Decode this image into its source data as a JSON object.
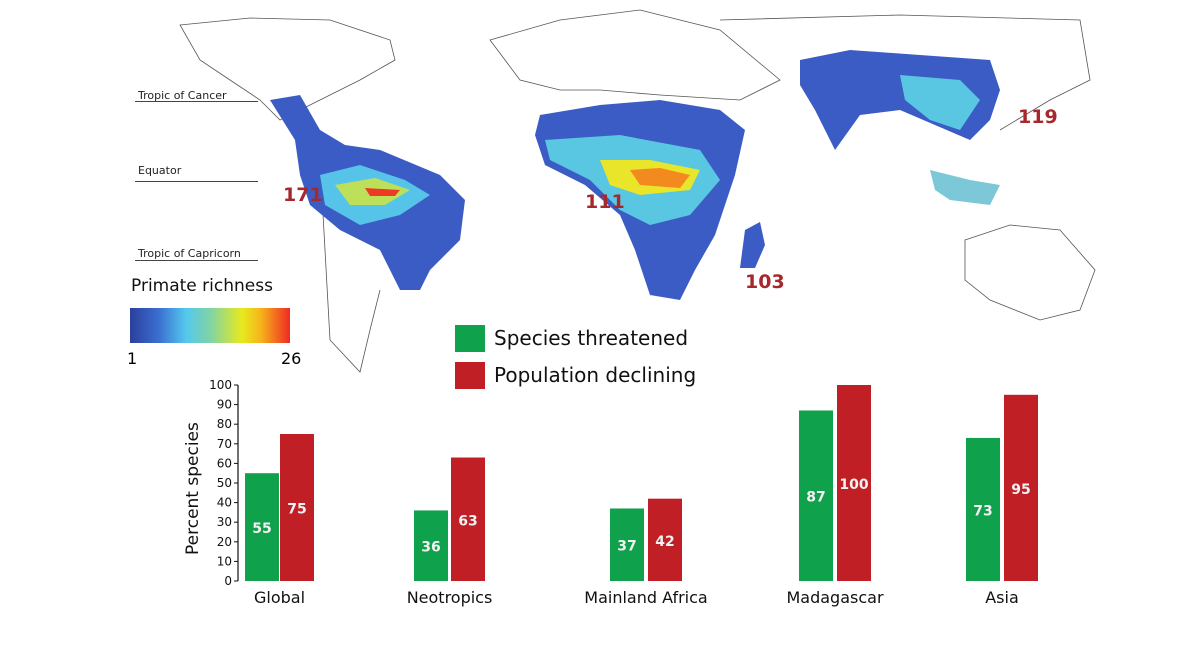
{
  "map": {
    "tropic_labels": [
      "Tropic of Cancer",
      "Equator",
      "Tropic of Capricorn"
    ],
    "richness_legend": {
      "title": "Primate richness",
      "min_label": "1",
      "max_label": "26"
    },
    "region_counts": [
      {
        "region": "Neotropics",
        "value": "171"
      },
      {
        "region": "Mainland Africa",
        "value": "111"
      },
      {
        "region": "Madagascar",
        "value": "103"
      },
      {
        "region": "Asia",
        "value": "119"
      }
    ]
  },
  "chart_data": {
    "type": "bar",
    "categories": [
      "Global",
      "Neotropics",
      "Mainland Africa",
      "Madagascar",
      "Asia"
    ],
    "series": [
      {
        "name": "Species threatened",
        "color": "#10a14c",
        "values": [
          55,
          36,
          37,
          87,
          73
        ]
      },
      {
        "name": "Population declining",
        "color": "#c01f26",
        "values": [
          75,
          63,
          42,
          100,
          95
        ]
      }
    ],
    "ylabel": "Percent species",
    "ylim": [
      0,
      100
    ],
    "yticks": [
      0,
      10,
      20,
      30,
      40,
      50,
      60,
      70,
      80,
      90,
      100
    ],
    "legend": "top-center",
    "grid": false
  }
}
